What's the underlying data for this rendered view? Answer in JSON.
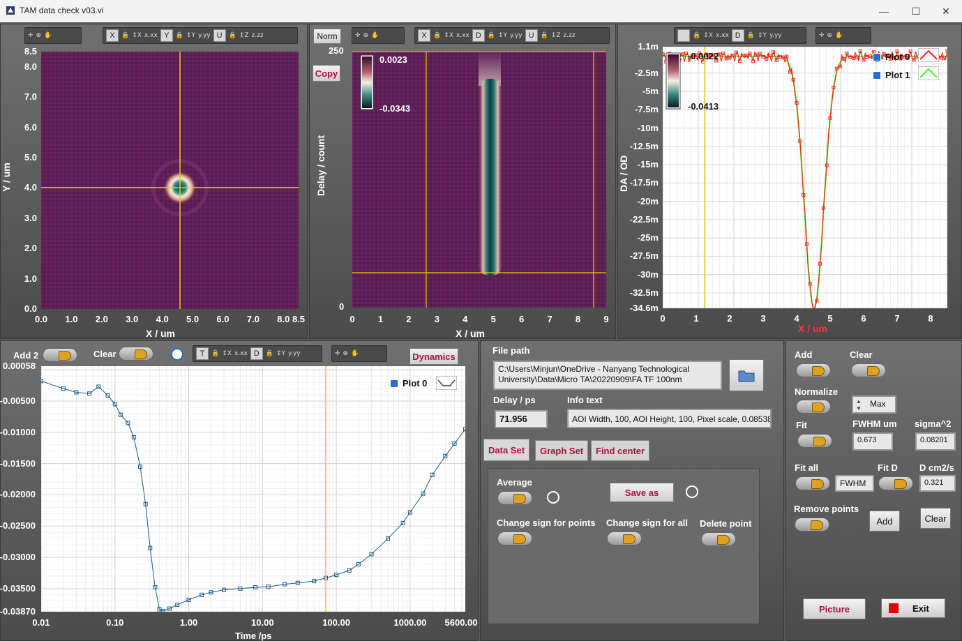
{
  "window": {
    "title": "TAM data check v03.vi",
    "min": "—",
    "max": "☐",
    "close": "✕"
  },
  "toolbars": {
    "image_axes": [
      "X",
      "Y",
      "U"
    ],
    "kymo_axes": [
      "X",
      "D",
      "U"
    ],
    "profile_axes": [
      "",
      "D"
    ],
    "dyn_axes": [
      "T",
      "D"
    ]
  },
  "image_plot": {
    "y_ticks": [
      "8.5",
      "8.0",
      "7.0",
      "6.0",
      "5.0",
      "4.0",
      "3.0",
      "2.0",
      "1.0",
      "0.0"
    ],
    "x_ticks": [
      "0.0",
      "1.0",
      "2.0",
      "3.0",
      "4.0",
      "5.0",
      "6.0",
      "7.0",
      "8.0",
      "8.5"
    ],
    "xlabel": "X / um",
    "ylabel": "Y / um",
    "cursor_x": 4.6,
    "cursor_y": 4.0
  },
  "kymo_plot": {
    "norm_label": "Norm",
    "copy_label": "Copy",
    "y_ticks": [
      "250",
      "0"
    ],
    "x_ticks": [
      "0",
      "1",
      "2",
      "3",
      "4",
      "5",
      "6",
      "7",
      "8",
      "9"
    ],
    "xlabel": "X / um",
    "ylabel": "Delay / count",
    "colorbar_max": "0.0023",
    "colorbar_min": "-0.0343"
  },
  "profile_plot": {
    "colorbar_max": "-0.0022",
    "colorbar_min": "-0.0413",
    "y_ticks": [
      "1.1m",
      "-2.5m",
      "-5m",
      "-7.5m",
      "-10m",
      "-12.5m",
      "-15m",
      "-17.5m",
      "-20m",
      "-22.5m",
      "-25m",
      "-27.5m",
      "-30m",
      "-32.5m",
      "-34.6m"
    ],
    "x_ticks": [
      "0",
      "1",
      "2",
      "3",
      "4",
      "5",
      "6",
      "7",
      "8"
    ],
    "xlabel": "X / um",
    "ylabel": "DA / OD",
    "legend": [
      "Plot 0",
      "Plot 1"
    ],
    "colors": {
      "plot0": "#ff2020",
      "plot1": "#40ff20",
      "cursor": "#f5c518"
    }
  },
  "chart_data": {
    "type": "line",
    "title": "",
    "xlabel": "Time /ps",
    "ylabel": "",
    "x_scale": "log",
    "xlim": [
      0.01,
      5600
    ],
    "ylim": [
      -0.0387,
      0.00058
    ],
    "x_tick_labels": [
      "0.01",
      "0.10",
      "1.00",
      "10.00",
      "100.00",
      "1000.00",
      "5600.00"
    ],
    "y_tick_labels": [
      "0.00058",
      "-0.00500",
      "-0.01000",
      "-0.01500",
      "-0.02000",
      "-0.02500",
      "-0.03000",
      "-0.03500",
      "-0.03870"
    ],
    "series": [
      {
        "name": "Plot 0",
        "x": [
          0.01,
          0.02,
          0.03,
          0.045,
          0.06,
          0.08,
          0.1,
          0.12,
          0.15,
          0.18,
          0.22,
          0.26,
          0.3,
          0.35,
          0.4,
          0.45,
          0.55,
          0.7,
          1.0,
          1.5,
          2.0,
          3.0,
          5.0,
          8.0,
          12,
          20,
          30,
          50,
          72,
          100,
          150,
          200,
          300,
          500,
          800,
          1000,
          1500,
          2000,
          3000,
          4000,
          5600
        ],
        "values": [
          -0.0018,
          -0.003,
          -0.0036,
          -0.0038,
          -0.0027,
          -0.0041,
          -0.0055,
          -0.0072,
          -0.0085,
          -0.0108,
          -0.0155,
          -0.0215,
          -0.0285,
          -0.0348,
          -0.0383,
          -0.0386,
          -0.0382,
          -0.0376,
          -0.0368,
          -0.036,
          -0.0356,
          -0.0352,
          -0.035,
          -0.0348,
          -0.0347,
          -0.0343,
          -0.0341,
          -0.0338,
          -0.0333,
          -0.0328,
          -0.0321,
          -0.0311,
          -0.0295,
          -0.027,
          -0.0245,
          -0.0228,
          -0.0198,
          -0.0168,
          -0.0138,
          -0.0118,
          -0.0095
        ]
      }
    ],
    "legend": [
      "Plot 0"
    ],
    "cursor_x": 72
  },
  "dynamics": {
    "add2_label": "Add 2",
    "clear_label": "Clear",
    "dynamics_label": "Dynamics"
  },
  "center": {
    "file_path_label": "File path",
    "file_path_line1": "C:\\Users\\Minjun\\OneDrive - Nanyang Technological",
    "file_path_line2": "University\\Data\\Micro TA\\20220909\\FA TF 100nm",
    "delay_label": "Delay / ps",
    "delay_value": "71.956",
    "info_label": "Info text",
    "info_value": "AOI Width, 100, AOI Height, 100, Pixel scale, 0.08538",
    "tabs": [
      "Data Set",
      "Graph Set",
      "Find center"
    ],
    "average_label": "Average",
    "save_as_label": "Save as",
    "change_sign_points": "Change sign for points",
    "change_sign_all": "Change sign for all",
    "delete_point": "Delete point"
  },
  "right": {
    "add_label": "Add",
    "clear_label": "Clear",
    "normalize_label": "Normalize",
    "norm_mode": "Max",
    "fit_label": "Fit",
    "fwhm_label": "FWHM um",
    "fwhm_value": "0.673",
    "sigma_label": "sigma^2",
    "sigma_value": "0.08201",
    "fit_all_label": "Fit all",
    "fit_all_mode": "FWHM",
    "fit_d_label": "Fit D",
    "d_label": "D cm2/s",
    "d_value": "0.321",
    "remove_points_label": "Remove points",
    "add_btn": "Add",
    "clear_btn": "Clear",
    "picture_btn": "Picture",
    "exit_btn": "Exit"
  }
}
